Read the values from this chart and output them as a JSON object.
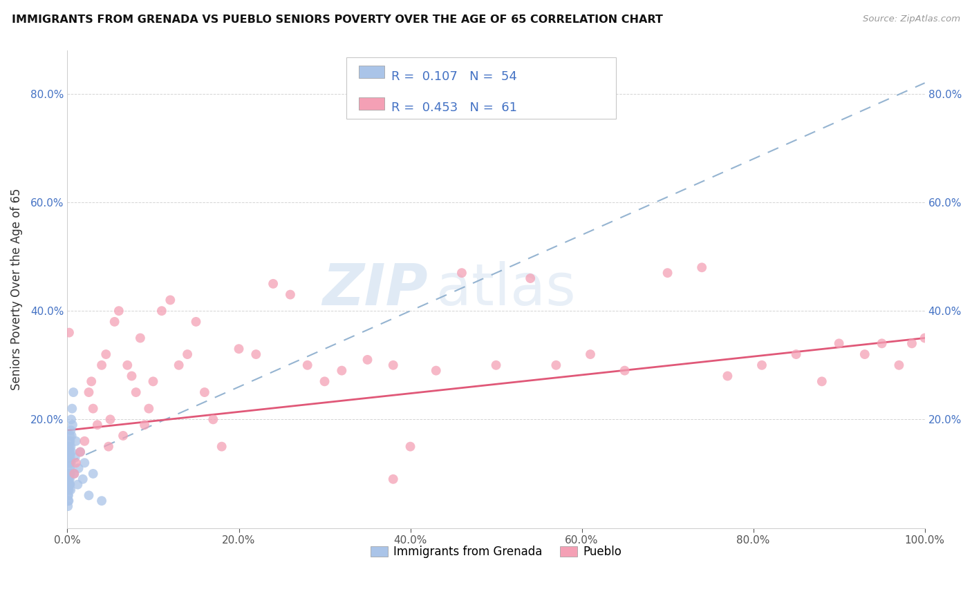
{
  "title": "IMMIGRANTS FROM GRENADA VS PUEBLO SENIORS POVERTY OVER THE AGE OF 65 CORRELATION CHART",
  "source": "Source: ZipAtlas.com",
  "ylabel": "Seniors Poverty Over the Age of 65",
  "xlim": [
    0.0,
    1.0
  ],
  "ylim": [
    0.0,
    0.88
  ],
  "xticks": [
    0.0,
    0.2,
    0.4,
    0.6,
    0.8,
    1.0
  ],
  "xticklabels": [
    "0.0%",
    "20.0%",
    "40.0%",
    "60.0%",
    "80.0%",
    "100.0%"
  ],
  "ytick_vals": [
    0.0,
    0.2,
    0.4,
    0.6,
    0.8
  ],
  "yticklabels": [
    "",
    "20.0%",
    "40.0%",
    "60.0%",
    "80.0%"
  ],
  "blue_R": 0.107,
  "blue_N": 54,
  "pink_R": 0.453,
  "pink_N": 61,
  "blue_color": "#aac4e8",
  "pink_color": "#f4a0b5",
  "blue_line_color": "#8aaccc",
  "pink_line_color": "#e05878",
  "watermark_zip": "ZIP",
  "watermark_atlas": "atlas",
  "legend_label_blue": "Immigrants from Grenada",
  "legend_label_pink": "Pueblo",
  "blue_scatter_x": [
    0.0003,
    0.0005,
    0.0006,
    0.0007,
    0.0008,
    0.0009,
    0.001,
    0.001,
    0.0012,
    0.0013,
    0.0014,
    0.0015,
    0.0015,
    0.0016,
    0.0017,
    0.0018,
    0.002,
    0.002,
    0.002,
    0.0022,
    0.0023,
    0.0024,
    0.0025,
    0.0026,
    0.0027,
    0.0028,
    0.003,
    0.003,
    0.003,
    0.0032,
    0.0033,
    0.0035,
    0.0036,
    0.0038,
    0.004,
    0.004,
    0.0042,
    0.0045,
    0.005,
    0.005,
    0.0055,
    0.006,
    0.007,
    0.008,
    0.009,
    0.01,
    0.012,
    0.013,
    0.015,
    0.018,
    0.02,
    0.025,
    0.03,
    0.04
  ],
  "blue_scatter_y": [
    0.08,
    0.06,
    0.04,
    0.1,
    0.07,
    0.05,
    0.12,
    0.09,
    0.06,
    0.13,
    0.1,
    0.08,
    0.15,
    0.05,
    0.12,
    0.09,
    0.14,
    0.11,
    0.07,
    0.16,
    0.13,
    0.1,
    0.08,
    0.15,
    0.12,
    0.09,
    0.17,
    0.14,
    0.11,
    0.08,
    0.16,
    0.13,
    0.1,
    0.07,
    0.18,
    0.15,
    0.12,
    0.2,
    0.17,
    0.14,
    0.22,
    0.19,
    0.25,
    0.1,
    0.13,
    0.16,
    0.08,
    0.11,
    0.14,
    0.09,
    0.12,
    0.06,
    0.1,
    0.05
  ],
  "pink_scatter_x": [
    0.002,
    0.008,
    0.01,
    0.015,
    0.02,
    0.025,
    0.028,
    0.03,
    0.035,
    0.04,
    0.045,
    0.048,
    0.05,
    0.055,
    0.06,
    0.065,
    0.07,
    0.075,
    0.08,
    0.085,
    0.09,
    0.095,
    0.1,
    0.11,
    0.12,
    0.13,
    0.14,
    0.15,
    0.16,
    0.17,
    0.18,
    0.2,
    0.22,
    0.24,
    0.26,
    0.28,
    0.3,
    0.32,
    0.35,
    0.38,
    0.4,
    0.43,
    0.46,
    0.5,
    0.54,
    0.57,
    0.61,
    0.65,
    0.7,
    0.74,
    0.77,
    0.81,
    0.85,
    0.88,
    0.9,
    0.93,
    0.95,
    0.97,
    0.985,
    1.0,
    0.38
  ],
  "pink_scatter_y": [
    0.36,
    0.1,
    0.12,
    0.14,
    0.16,
    0.25,
    0.27,
    0.22,
    0.19,
    0.3,
    0.32,
    0.15,
    0.2,
    0.38,
    0.4,
    0.17,
    0.3,
    0.28,
    0.25,
    0.35,
    0.19,
    0.22,
    0.27,
    0.4,
    0.42,
    0.3,
    0.32,
    0.38,
    0.25,
    0.2,
    0.15,
    0.33,
    0.32,
    0.45,
    0.43,
    0.3,
    0.27,
    0.29,
    0.31,
    0.3,
    0.15,
    0.29,
    0.47,
    0.3,
    0.46,
    0.3,
    0.32,
    0.29,
    0.47,
    0.48,
    0.28,
    0.3,
    0.32,
    0.27,
    0.34,
    0.32,
    0.34,
    0.3,
    0.34,
    0.35,
    0.09
  ]
}
